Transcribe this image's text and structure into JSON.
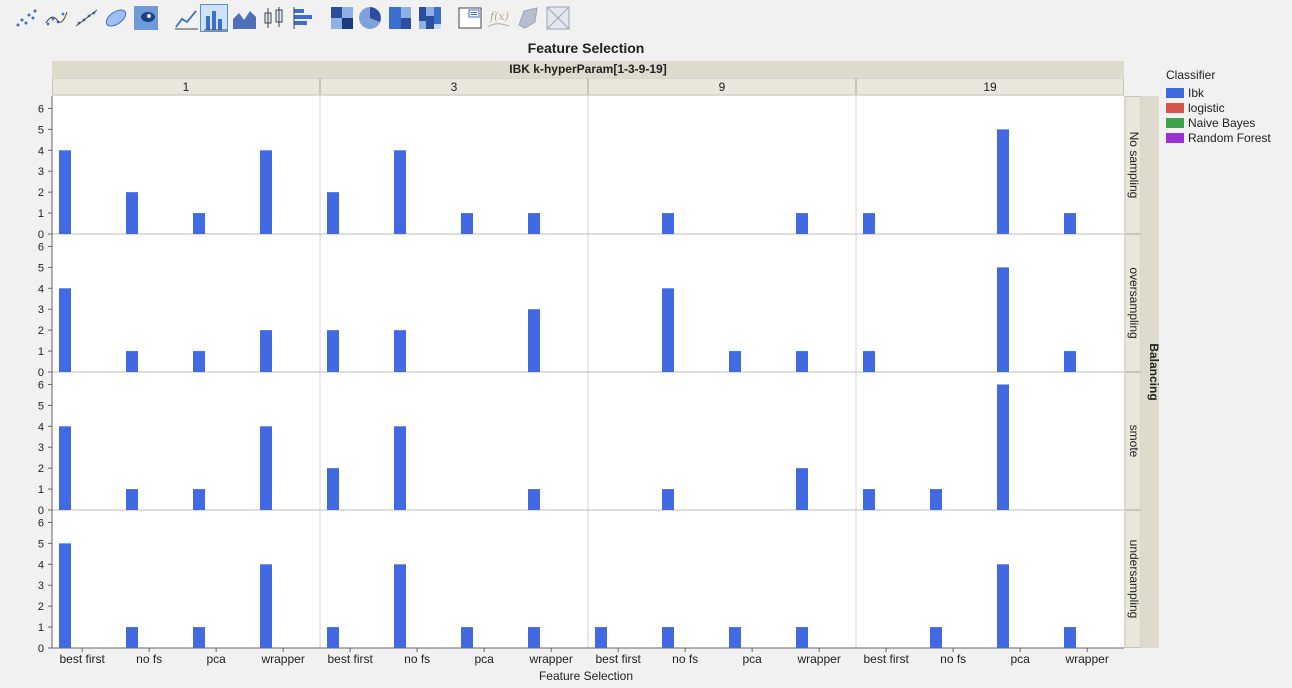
{
  "toolbar": {
    "buttons": [
      {
        "name": "scatter-points-icon"
      },
      {
        "name": "smoother-icon"
      },
      {
        "name": "line-fit-icon"
      },
      {
        "name": "ellipse-icon"
      },
      {
        "name": "contour-icon"
      },
      {
        "name": "line-chart-icon"
      },
      {
        "name": "bar-chart-icon",
        "active": true
      },
      {
        "name": "area-chart-icon"
      },
      {
        "name": "box-plot-icon"
      },
      {
        "name": "histogram-icon"
      },
      {
        "name": "heatmap-icon"
      },
      {
        "name": "pie-chart-icon"
      },
      {
        "name": "treemap-icon"
      },
      {
        "name": "mosaic-icon"
      },
      {
        "name": "caption-box-icon"
      },
      {
        "name": "formula-icon"
      },
      {
        "name": "map-shape-icon"
      },
      {
        "name": "grid-icon"
      }
    ]
  },
  "chart_data": {
    "type": "bar",
    "title": "Feature Selection",
    "xlabel": "Feature Selection",
    "x_group_label": "IBK k-hyperParam[1-3-9-19]",
    "y_group_label": "Balancing",
    "column_panels": [
      "1",
      "3",
      "9",
      "19"
    ],
    "row_panels": [
      "No sampling",
      "oversampling",
      "smote",
      "undersampling"
    ],
    "categories": [
      "best first",
      "no fs",
      "pca",
      "wrapper"
    ],
    "ylim": [
      0,
      6.5
    ],
    "yticks": [
      "0",
      "1",
      "2",
      "3",
      "4",
      "5",
      "6"
    ],
    "grid": false,
    "legend": {
      "title": "Classifier",
      "position": "right",
      "items": [
        {
          "name": "Ibk",
          "color": "#4169e1"
        },
        {
          "name": "logistic",
          "color": "#d9534f"
        },
        {
          "name": "Naive Bayes",
          "color": "#3ea34a"
        },
        {
          "name": "Random Forest",
          "color": "#9b30d9"
        }
      ]
    },
    "series_name": "Ibk",
    "series_color": "#4169e1",
    "panels": [
      [
        [
          4,
          2,
          1,
          4
        ],
        [
          2,
          4,
          1,
          1
        ],
        [
          0,
          1,
          0,
          1
        ],
        [
          1,
          0,
          5,
          1
        ]
      ],
      [
        [
          4,
          1,
          1,
          2
        ],
        [
          2,
          2,
          0,
          3
        ],
        [
          0,
          4,
          1,
          1
        ],
        [
          1,
          0,
          5,
          1
        ]
      ],
      [
        [
          4,
          1,
          1,
          4
        ],
        [
          2,
          4,
          0,
          1
        ],
        [
          0,
          1,
          0,
          2
        ],
        [
          1,
          1,
          6,
          0
        ]
      ],
      [
        [
          5,
          1,
          1,
          4
        ],
        [
          1,
          4,
          1,
          1
        ],
        [
          1,
          1,
          1,
          1
        ],
        [
          0,
          1,
          4,
          1
        ]
      ]
    ]
  }
}
